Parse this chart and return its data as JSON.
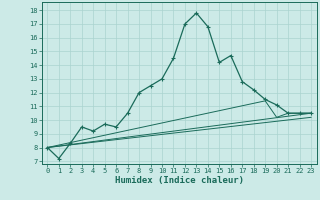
{
  "xlabel": "Humidex (Indice chaleur)",
  "background_color": "#cceae7",
  "grid_color": "#aad4d0",
  "line_color": "#1a6b5a",
  "xlim": [
    -0.5,
    23.5
  ],
  "ylim": [
    6.8,
    18.6
  ],
  "yticks": [
    7,
    8,
    9,
    10,
    11,
    12,
    13,
    14,
    15,
    16,
    17,
    18
  ],
  "xticks": [
    0,
    1,
    2,
    3,
    4,
    5,
    6,
    7,
    8,
    9,
    10,
    11,
    12,
    13,
    14,
    15,
    16,
    17,
    18,
    19,
    20,
    21,
    22,
    23
  ],
  "main_line": [
    [
      0,
      8.0
    ],
    [
      1,
      7.2
    ],
    [
      2,
      8.3
    ],
    [
      3,
      9.5
    ],
    [
      4,
      9.2
    ],
    [
      5,
      9.7
    ],
    [
      6,
      9.5
    ],
    [
      7,
      10.5
    ],
    [
      8,
      12.0
    ],
    [
      9,
      12.5
    ],
    [
      10,
      13.0
    ],
    [
      11,
      14.5
    ],
    [
      12,
      17.0
    ],
    [
      13,
      17.8
    ],
    [
      14,
      16.8
    ],
    [
      15,
      14.2
    ],
    [
      16,
      14.7
    ],
    [
      17,
      12.8
    ],
    [
      18,
      12.2
    ],
    [
      19,
      11.5
    ],
    [
      20,
      11.1
    ],
    [
      21,
      10.5
    ],
    [
      22,
      10.5
    ],
    [
      23,
      10.5
    ]
  ],
  "ref_line1": [
    [
      0,
      8.0
    ],
    [
      19,
      11.4
    ],
    [
      20,
      10.2
    ],
    [
      21,
      10.5
    ],
    [
      22,
      10.5
    ],
    [
      23,
      10.5
    ]
  ],
  "ref_line2": [
    [
      0,
      8.0
    ],
    [
      23,
      10.5
    ]
  ],
  "ref_line3": [
    [
      0,
      8.0
    ],
    [
      23,
      10.2
    ]
  ]
}
